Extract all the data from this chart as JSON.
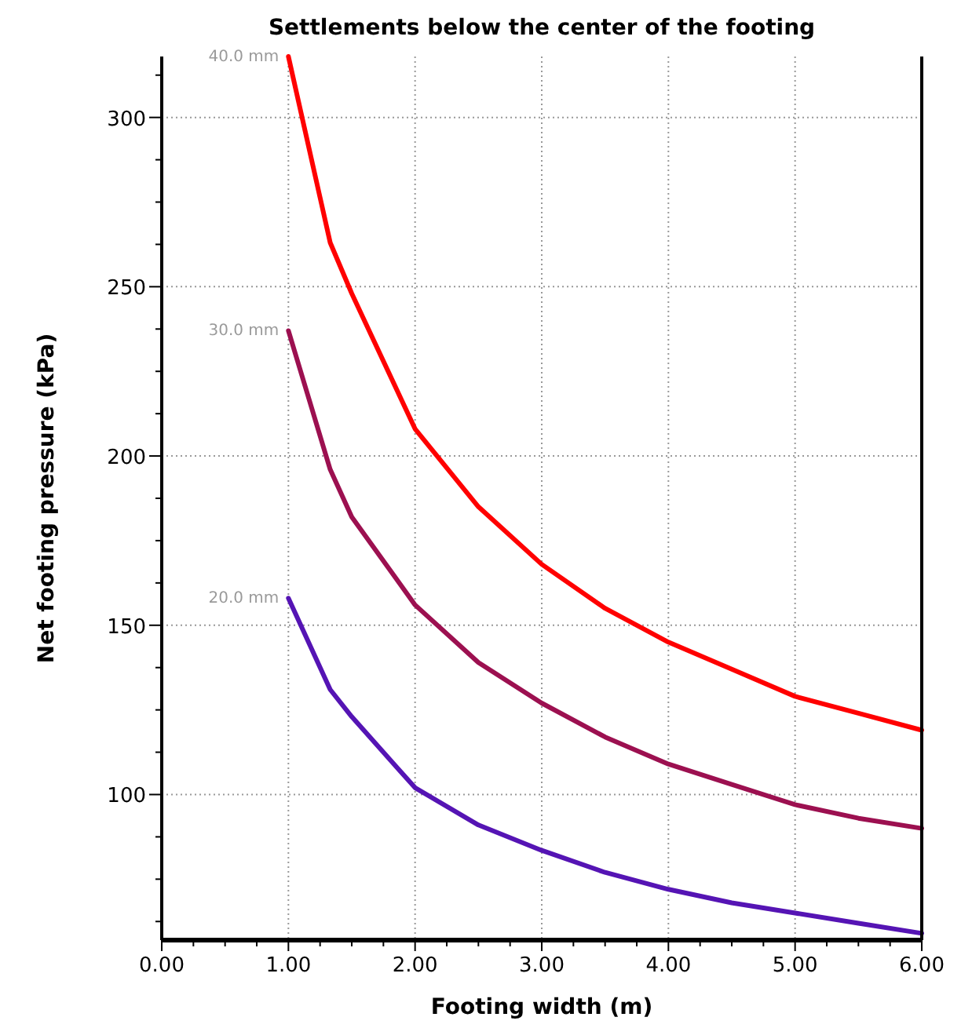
{
  "chart_data": {
    "type": "line",
    "title": "Settlements below the center of the footing",
    "xlabel": "Footing width (m)",
    "ylabel": "Net footing pressure (kPa)",
    "xlim": [
      0,
      6
    ],
    "ylim": [
      57,
      318
    ],
    "xticks": [
      {
        "value": 0,
        "label": "0.00"
      },
      {
        "value": 0.25,
        "label": null
      },
      {
        "value": 0.5,
        "label": null
      },
      {
        "value": 0.75,
        "label": null
      },
      {
        "value": 1,
        "label": "1.00"
      },
      {
        "value": 1.25,
        "label": null
      },
      {
        "value": 1.5,
        "label": null
      },
      {
        "value": 1.75,
        "label": null
      },
      {
        "value": 2,
        "label": "2.00"
      },
      {
        "value": 2.25,
        "label": null
      },
      {
        "value": 2.5,
        "label": null
      },
      {
        "value": 2.75,
        "label": null
      },
      {
        "value": 3,
        "label": "3.00"
      },
      {
        "value": 3.25,
        "label": null
      },
      {
        "value": 3.5,
        "label": null
      },
      {
        "value": 3.75,
        "label": null
      },
      {
        "value": 4,
        "label": "4.00"
      },
      {
        "value": 4.25,
        "label": null
      },
      {
        "value": 4.5,
        "label": null
      },
      {
        "value": 4.75,
        "label": null
      },
      {
        "value": 5,
        "label": "5.00"
      },
      {
        "value": 5.25,
        "label": null
      },
      {
        "value": 5.5,
        "label": null
      },
      {
        "value": 5.75,
        "label": null
      },
      {
        "value": 6,
        "label": "6.00"
      }
    ],
    "yticks": [
      {
        "value": 62.5,
        "label": null
      },
      {
        "value": 75,
        "label": null
      },
      {
        "value": 87.5,
        "label": null
      },
      100,
      {
        "value": 112.5,
        "label": null
      },
      {
        "value": 125,
        "label": null
      },
      {
        "value": 137.5,
        "label": null
      },
      150,
      {
        "value": 162.5,
        "label": null
      },
      {
        "value": 175,
        "label": null
      },
      {
        "value": 187.5,
        "label": null
      },
      200,
      {
        "value": 212.5,
        "label": null
      },
      {
        "value": 225,
        "label": null
      },
      {
        "value": 237.5,
        "label": null
      },
      250,
      {
        "value": 262.5,
        "label": null
      },
      {
        "value": 275,
        "label": null
      },
      {
        "value": 287.5,
        "label": null
      },
      300,
      {
        "value": 312.5,
        "label": null
      }
    ],
    "grid": true,
    "marker": "none",
    "line_style": "solid",
    "x": [
      1,
      1.33,
      1.5,
      2,
      2.5,
      3,
      3.5,
      4,
      4.5,
      5,
      5.5,
      6
    ],
    "series": [
      {
        "name": "40.0 mm",
        "color": "#ff0000",
        "values": [
          318,
          263,
          248,
          208,
          185,
          168,
          155,
          145,
          137,
          129,
          124,
          119
        ]
      },
      {
        "name": "30.0 mm",
        "color": "#9c1050",
        "values": [
          237,
          196,
          182,
          156,
          139,
          127,
          117,
          109,
          103,
          97,
          93,
          90
        ]
      },
      {
        "name": "20.0 mm",
        "color": "#5514b4",
        "values": [
          158,
          131,
          123,
          102,
          91,
          83.5,
          77,
          72,
          68,
          65,
          62,
          59
        ]
      }
    ]
  }
}
